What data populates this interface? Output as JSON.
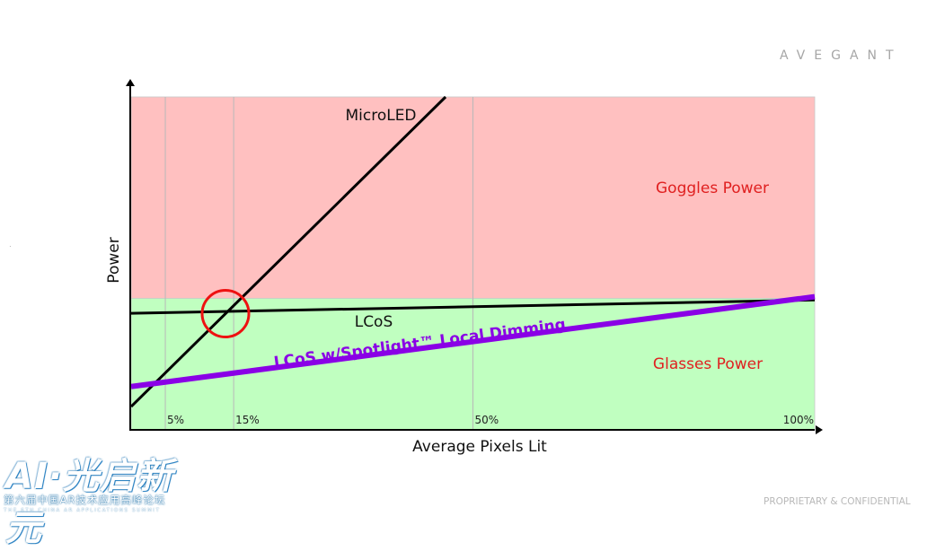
{
  "brand": "AVEGANT",
  "footer": {
    "confidential": "PROPRIETARY & CONFIDENTIAL"
  },
  "event_logo": {
    "title": "AI·光启新元",
    "subtitle": "第六届中国AR技术应用高峰论坛",
    "subtitle_en": "THE 6TH CHINA AR APPLICATIONS SUMMIT"
  },
  "chart_data": {
    "type": "line",
    "title": "",
    "xlabel": "Average Pixels Lit",
    "ylabel": "Power",
    "xlim": [
      0,
      100
    ],
    "ylim": [
      0,
      100
    ],
    "x_ticks": [
      {
        "value": 5,
        "label": "5%"
      },
      {
        "value": 15,
        "label": "15%"
      },
      {
        "value": 50,
        "label": "50%"
      },
      {
        "value": 100,
        "label": "100%"
      }
    ],
    "regions": [
      {
        "name": "Goggles Power",
        "y_from": 39.5,
        "y_to": 100,
        "color": "#ffc0c0",
        "label_color": "#e02020"
      },
      {
        "name": "Glasses Power",
        "y_from": 0,
        "y_to": 39.5,
        "color": "#c0ffc0",
        "label_color": "#e02020"
      }
    ],
    "series": [
      {
        "name": "MicroLED",
        "x": [
          0,
          46
        ],
        "y": [
          7,
          100
        ],
        "color": "#000000"
      },
      {
        "name": "LCoS",
        "x": [
          0,
          100
        ],
        "y": [
          35,
          39
        ],
        "color": "#000000"
      },
      {
        "name": "LCoS w/Spotlight™ Local Dimming",
        "x": [
          0,
          100
        ],
        "y": [
          13,
          40
        ],
        "color": "#8a00e6"
      }
    ],
    "annotations": [
      {
        "type": "circle",
        "x": 13.8,
        "y": 34.9,
        "color": "#ee1111"
      }
    ],
    "grid": "vertical"
  }
}
